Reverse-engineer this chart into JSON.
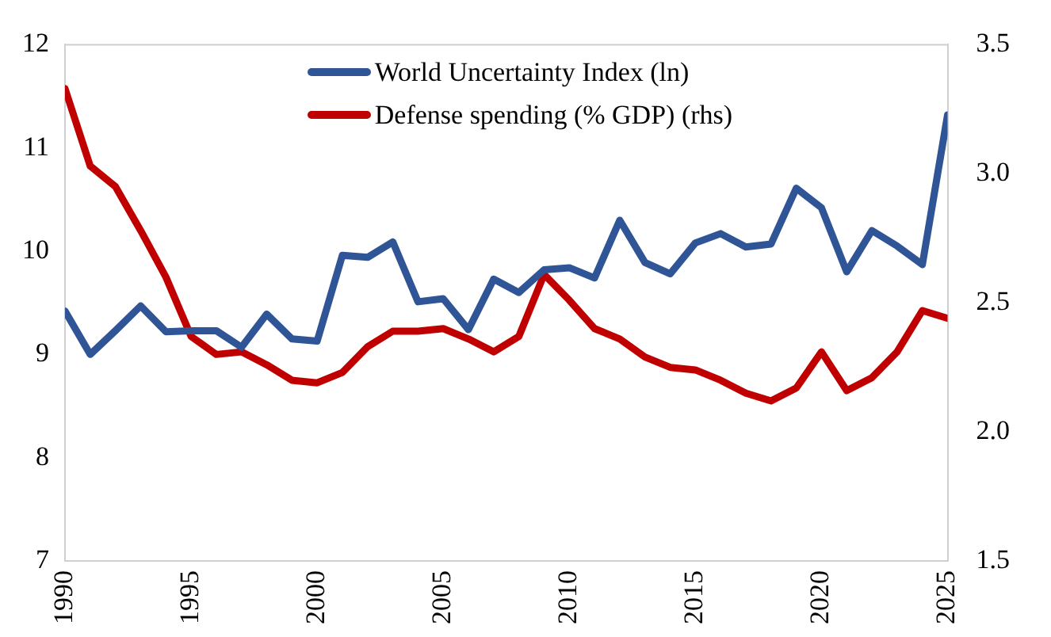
{
  "chart_data": {
    "type": "line",
    "x": [
      1990,
      1991,
      1992,
      1993,
      1994,
      1995,
      1996,
      1997,
      1998,
      1999,
      2000,
      2001,
      2002,
      2003,
      2004,
      2005,
      2006,
      2007,
      2008,
      2009,
      2010,
      2011,
      2012,
      2013,
      2014,
      2015,
      2016,
      2017,
      2018,
      2019,
      2020,
      2021,
      2022,
      2023,
      2024,
      2025
    ],
    "series": [
      {
        "name": "World Uncertainty Index (ln)",
        "color": "#2f5597",
        "values": [
          9.42,
          9.0,
          9.23,
          9.47,
          9.22,
          9.23,
          9.23,
          9.07,
          9.39,
          9.15,
          9.13,
          9.96,
          9.94,
          10.09,
          9.51,
          9.54,
          9.24,
          9.73,
          9.6,
          9.82,
          9.84,
          9.74,
          10.3,
          9.89,
          9.78,
          10.08,
          10.17,
          10.04,
          10.07,
          10.61,
          10.42,
          9.8,
          10.2,
          10.05,
          9.87,
          11.32
        ]
      },
      {
        "name": "Defense spending (% GDP) (rhs)",
        "color": "#c00000",
        "axis": "y2",
        "values": [
          3.33,
          3.03,
          2.95,
          2.78,
          2.6,
          2.37,
          2.3,
          2.31,
          2.26,
          2.2,
          2.19,
          2.23,
          2.33,
          2.39,
          2.39,
          2.4,
          2.36,
          2.31,
          2.37,
          2.61,
          2.51,
          2.4,
          2.36,
          2.29,
          2.25,
          2.24,
          2.2,
          2.15,
          2.12,
          2.17,
          2.31,
          2.16,
          2.21,
          2.31,
          2.47,
          2.44
        ]
      }
    ],
    "xlim": [
      1990,
      2025
    ],
    "xticks": [
      1990,
      1995,
      2000,
      2005,
      2010,
      2015,
      2020,
      2025
    ],
    "ylim": [
      7,
      12
    ],
    "yticks": [
      7,
      8,
      9,
      10,
      11,
      12
    ],
    "y2lim": [
      1.5,
      3.5
    ],
    "y2ticks": [
      {
        "value": 1.5,
        "label": "1.5"
      },
      {
        "value": 2,
        "label": "2.0"
      },
      {
        "value": 2.5,
        "label": "2.5"
      },
      {
        "value": 3,
        "label": "3.0"
      },
      {
        "value": 3.5,
        "label": "3.5"
      }
    ],
    "grid": false,
    "legend": "top",
    "marker": "none",
    "line_style": "solid"
  }
}
